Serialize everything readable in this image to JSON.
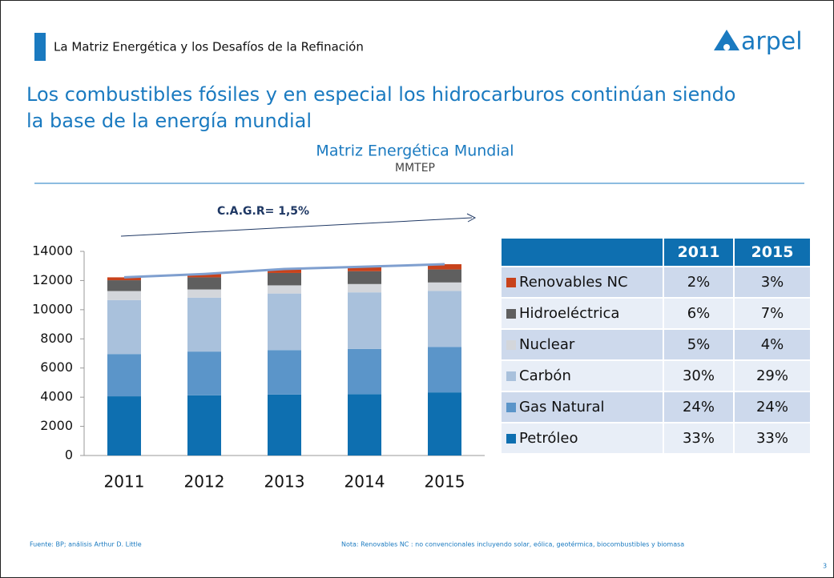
{
  "header": {
    "title": "La Matriz Energética y los Desafíos de la Refinación",
    "logo": "arpel"
  },
  "headline": [
    "Los combustibles fósiles y en especial los hidrocarburos continúan siendo",
    "la base de la energía mundial"
  ],
  "chart_data": {
    "type": "stacked_bar",
    "title": "Matriz Energética Mundial",
    "subtitle": "MMTEP",
    "annotation": "C.A.G.R= 1,5%",
    "categories": [
      "2011",
      "2012",
      "2013",
      "2014",
      "2015"
    ],
    "series": [
      {
        "name": "Petróleo",
        "color": "#0e6fb0",
        "values": [
          4060,
          4130,
          4180,
          4210,
          4330
        ]
      },
      {
        "name": "Gas Natural",
        "color": "#5b95c9",
        "values": [
          2900,
          3000,
          3050,
          3100,
          3120
        ]
      },
      {
        "name": "Carbón",
        "color": "#a9c1dc",
        "values": [
          3700,
          3700,
          3880,
          3880,
          3840
        ]
      },
      {
        "name": "Nuclear",
        "color": "#d3d6db",
        "values": [
          620,
          560,
          560,
          570,
          580
        ]
      },
      {
        "name": "Hidroeléctrica",
        "color": "#5f5f5f",
        "values": [
          740,
          830,
          850,
          880,
          890
        ]
      },
      {
        "name": "Renovables NC",
        "color": "#c8421b",
        "values": [
          200,
          230,
          270,
          310,
          360
        ]
      }
    ],
    "ylim": [
      0,
      14000
    ],
    "yticks": [
      0,
      2000,
      4000,
      6000,
      8000,
      10000,
      12000,
      14000
    ]
  },
  "table": {
    "columns": [
      "2011",
      "2015"
    ],
    "rows": [
      [
        "Renovables NC",
        "2%",
        "3%"
      ],
      [
        "Hidroeléctrica",
        "6%",
        "7%"
      ],
      [
        "Nuclear",
        "5%",
        "4%"
      ],
      [
        "Carbón",
        "30%",
        "29%"
      ],
      [
        "Gas Natural",
        "24%",
        "24%"
      ],
      [
        "Petróleo",
        "33%",
        "33%"
      ]
    ]
  },
  "footnotes": {
    "source": "Fuente: BP; análisis Arthur D. Little",
    "note": "Nota: Renovables NC : no convencionales incluyendo solar, eólica, geotérmica, biocombustibles y biomasa"
  },
  "page_number": "3"
}
